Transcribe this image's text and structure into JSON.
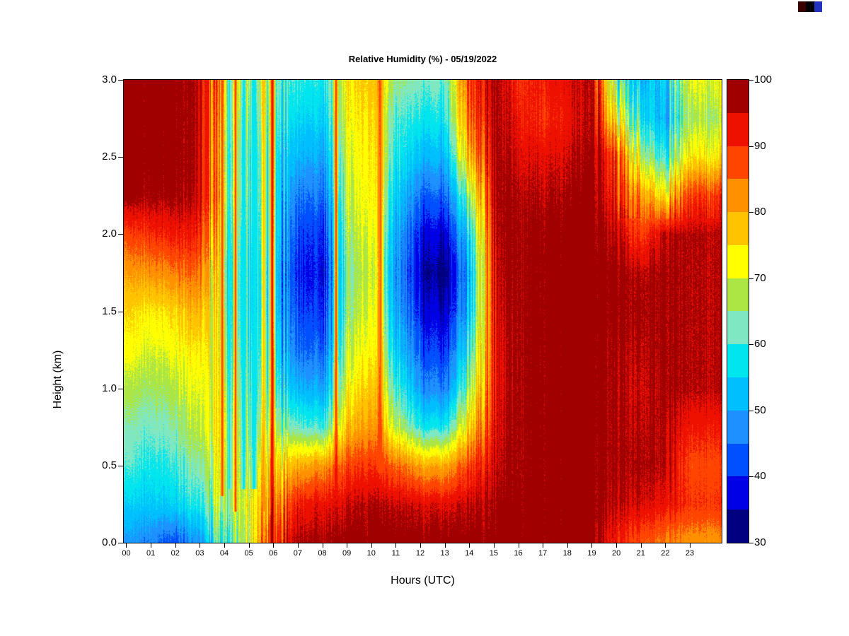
{
  "corner_artifact": {
    "colors": [
      "#3A0000",
      "#000000",
      "#2233C0"
    ]
  },
  "chart_data": {
    "type": "heatmap",
    "title": "Relative Humidity (%) - 05/19/2022",
    "xlabel": "Hours (UTC)",
    "ylabel": "Height (km)",
    "units": "%",
    "xlim": [
      0,
      24.4
    ],
    "ylim": [
      0,
      3
    ],
    "x_tick_labels": [
      "00",
      "01",
      "02",
      "03",
      "04",
      "05",
      "06",
      "07",
      "08",
      "09",
      "10",
      "11",
      "12",
      "13",
      "14",
      "15",
      "16",
      "17",
      "18",
      "19",
      "20",
      "21",
      "22",
      "23"
    ],
    "y_tick_values": [
      0,
      0.5,
      1,
      1.5,
      2,
      2.5,
      3
    ],
    "y_tick_labels": [
      "0.0",
      "0.5",
      "1.0",
      "1.5",
      "2.0",
      "2.5",
      "3.0"
    ],
    "hours": [
      0,
      1,
      2,
      3,
      4,
      5,
      6,
      7,
      8,
      9,
      10,
      11,
      12,
      13,
      14,
      15,
      16,
      17,
      18,
      19,
      20,
      21,
      22,
      23
    ],
    "heights": [
      0,
      0.25,
      0.5,
      0.75,
      1,
      1.25,
      1.5,
      1.75,
      2,
      2.25,
      2.5,
      2.75,
      3
    ],
    "values": [
      [
        48,
        46,
        42,
        50,
        62,
        70,
        90,
        97,
        97,
        98,
        98,
        98,
        98,
        98,
        98,
        98,
        98,
        98,
        98,
        98,
        92,
        86,
        84,
        82
      ],
      [
        54,
        54,
        55,
        60,
        68,
        72,
        82,
        92,
        93,
        95,
        96,
        95,
        94,
        94,
        95,
        97,
        98,
        98,
        98,
        98,
        96,
        94,
        93,
        90
      ],
      [
        60,
        58,
        60,
        65,
        70,
        68,
        75,
        80,
        82,
        88,
        90,
        85,
        80,
        80,
        88,
        95,
        97,
        98,
        98,
        98,
        97,
        96,
        96,
        88
      ],
      [
        63,
        62,
        64,
        70,
        72,
        65,
        66,
        62,
        60,
        78,
        82,
        68,
        58,
        58,
        75,
        94,
        97,
        98,
        98,
        98,
        97,
        95,
        96,
        92
      ],
      [
        67,
        66,
        68,
        72,
        70,
        62,
        60,
        52,
        50,
        72,
        78,
        60,
        48,
        46,
        65,
        93,
        97,
        98,
        98,
        98,
        97,
        94,
        97,
        96
      ],
      [
        72,
        70,
        72,
        75,
        68,
        60,
        58,
        45,
        44,
        68,
        74,
        54,
        42,
        40,
        58,
        93,
        97,
        98,
        98,
        98,
        97,
        95,
        97,
        96
      ],
      [
        75,
        74,
        76,
        80,
        66,
        58,
        55,
        42,
        40,
        65,
        72,
        50,
        38,
        35,
        52,
        94,
        97,
        98,
        98,
        98,
        98,
        96,
        97,
        96
      ],
      [
        80,
        82,
        84,
        86,
        65,
        58,
        55,
        40,
        38,
        64,
        70,
        48,
        35,
        32,
        50,
        95,
        97,
        98,
        98,
        98,
        98,
        95,
        97,
        96
      ],
      [
        87,
        90,
        92,
        92,
        68,
        60,
        57,
        42,
        40,
        66,
        72,
        50,
        38,
        36,
        55,
        96,
        97,
        98,
        98,
        98,
        96,
        88,
        96,
        96
      ],
      [
        97,
        97,
        97,
        96,
        72,
        62,
        58,
        46,
        45,
        68,
        74,
        54,
        44,
        44,
        65,
        97,
        96,
        96,
        97,
        98,
        92,
        80,
        75,
        90
      ],
      [
        98,
        98,
        98,
        97,
        70,
        62,
        58,
        52,
        50,
        70,
        75,
        58,
        52,
        52,
        78,
        97,
        94,
        94,
        95,
        97,
        90,
        65,
        60,
        75
      ],
      [
        98,
        98,
        98,
        97,
        72,
        65,
        60,
        56,
        55,
        72,
        76,
        60,
        58,
        58,
        85,
        97,
        92,
        90,
        93,
        96,
        75,
        55,
        52,
        68
      ],
      [
        98,
        98,
        98,
        97,
        75,
        68,
        62,
        60,
        58,
        74,
        78,
        65,
        62,
        62,
        88,
        97,
        90,
        92,
        94,
        96,
        65,
        50,
        55,
        72
      ]
    ],
    "vertical_streaks": [
      {
        "hour": 3.9,
        "width": 0.06,
        "value": 92,
        "min_height": 0.3
      },
      {
        "hour": 4.2,
        "width": 0.09,
        "value": 58,
        "min_height": 0.35
      },
      {
        "hour": 4.45,
        "width": 0.06,
        "value": 90,
        "min_height": 0.2
      },
      {
        "hour": 4.78,
        "width": 0.09,
        "value": 56,
        "min_height": 0.35
      },
      {
        "hour": 5.2,
        "width": 0.11,
        "value": 55,
        "min_height": 0.35
      },
      {
        "hour": 5.6,
        "width": 0.07,
        "value": 82,
        "min_height": 0.2
      },
      {
        "hour": 5.95,
        "width": 0.1,
        "value": 97,
        "min_height": 0
      },
      {
        "hour": 8.55,
        "width": 0.07,
        "value": 92,
        "min_height": 0.3
      },
      {
        "hour": 10.35,
        "width": 0.12,
        "value": 88,
        "min_height": 0.45
      }
    ],
    "colorbar_ticks": [
      30,
      40,
      50,
      60,
      70,
      80,
      90,
      100
    ],
    "colormap": {
      "vmin": 30,
      "vmax": 100,
      "band_step": 5,
      "band_colors": [
        "#000080",
        "#0000E6",
        "#0050FF",
        "#1E90FF",
        "#00BFFF",
        "#00E5EE",
        "#7FE8C3",
        "#ACE645",
        "#FFFF00",
        "#FFC300",
        "#FF9100",
        "#FF4500",
        "#EE1100",
        "#A00000"
      ]
    }
  }
}
